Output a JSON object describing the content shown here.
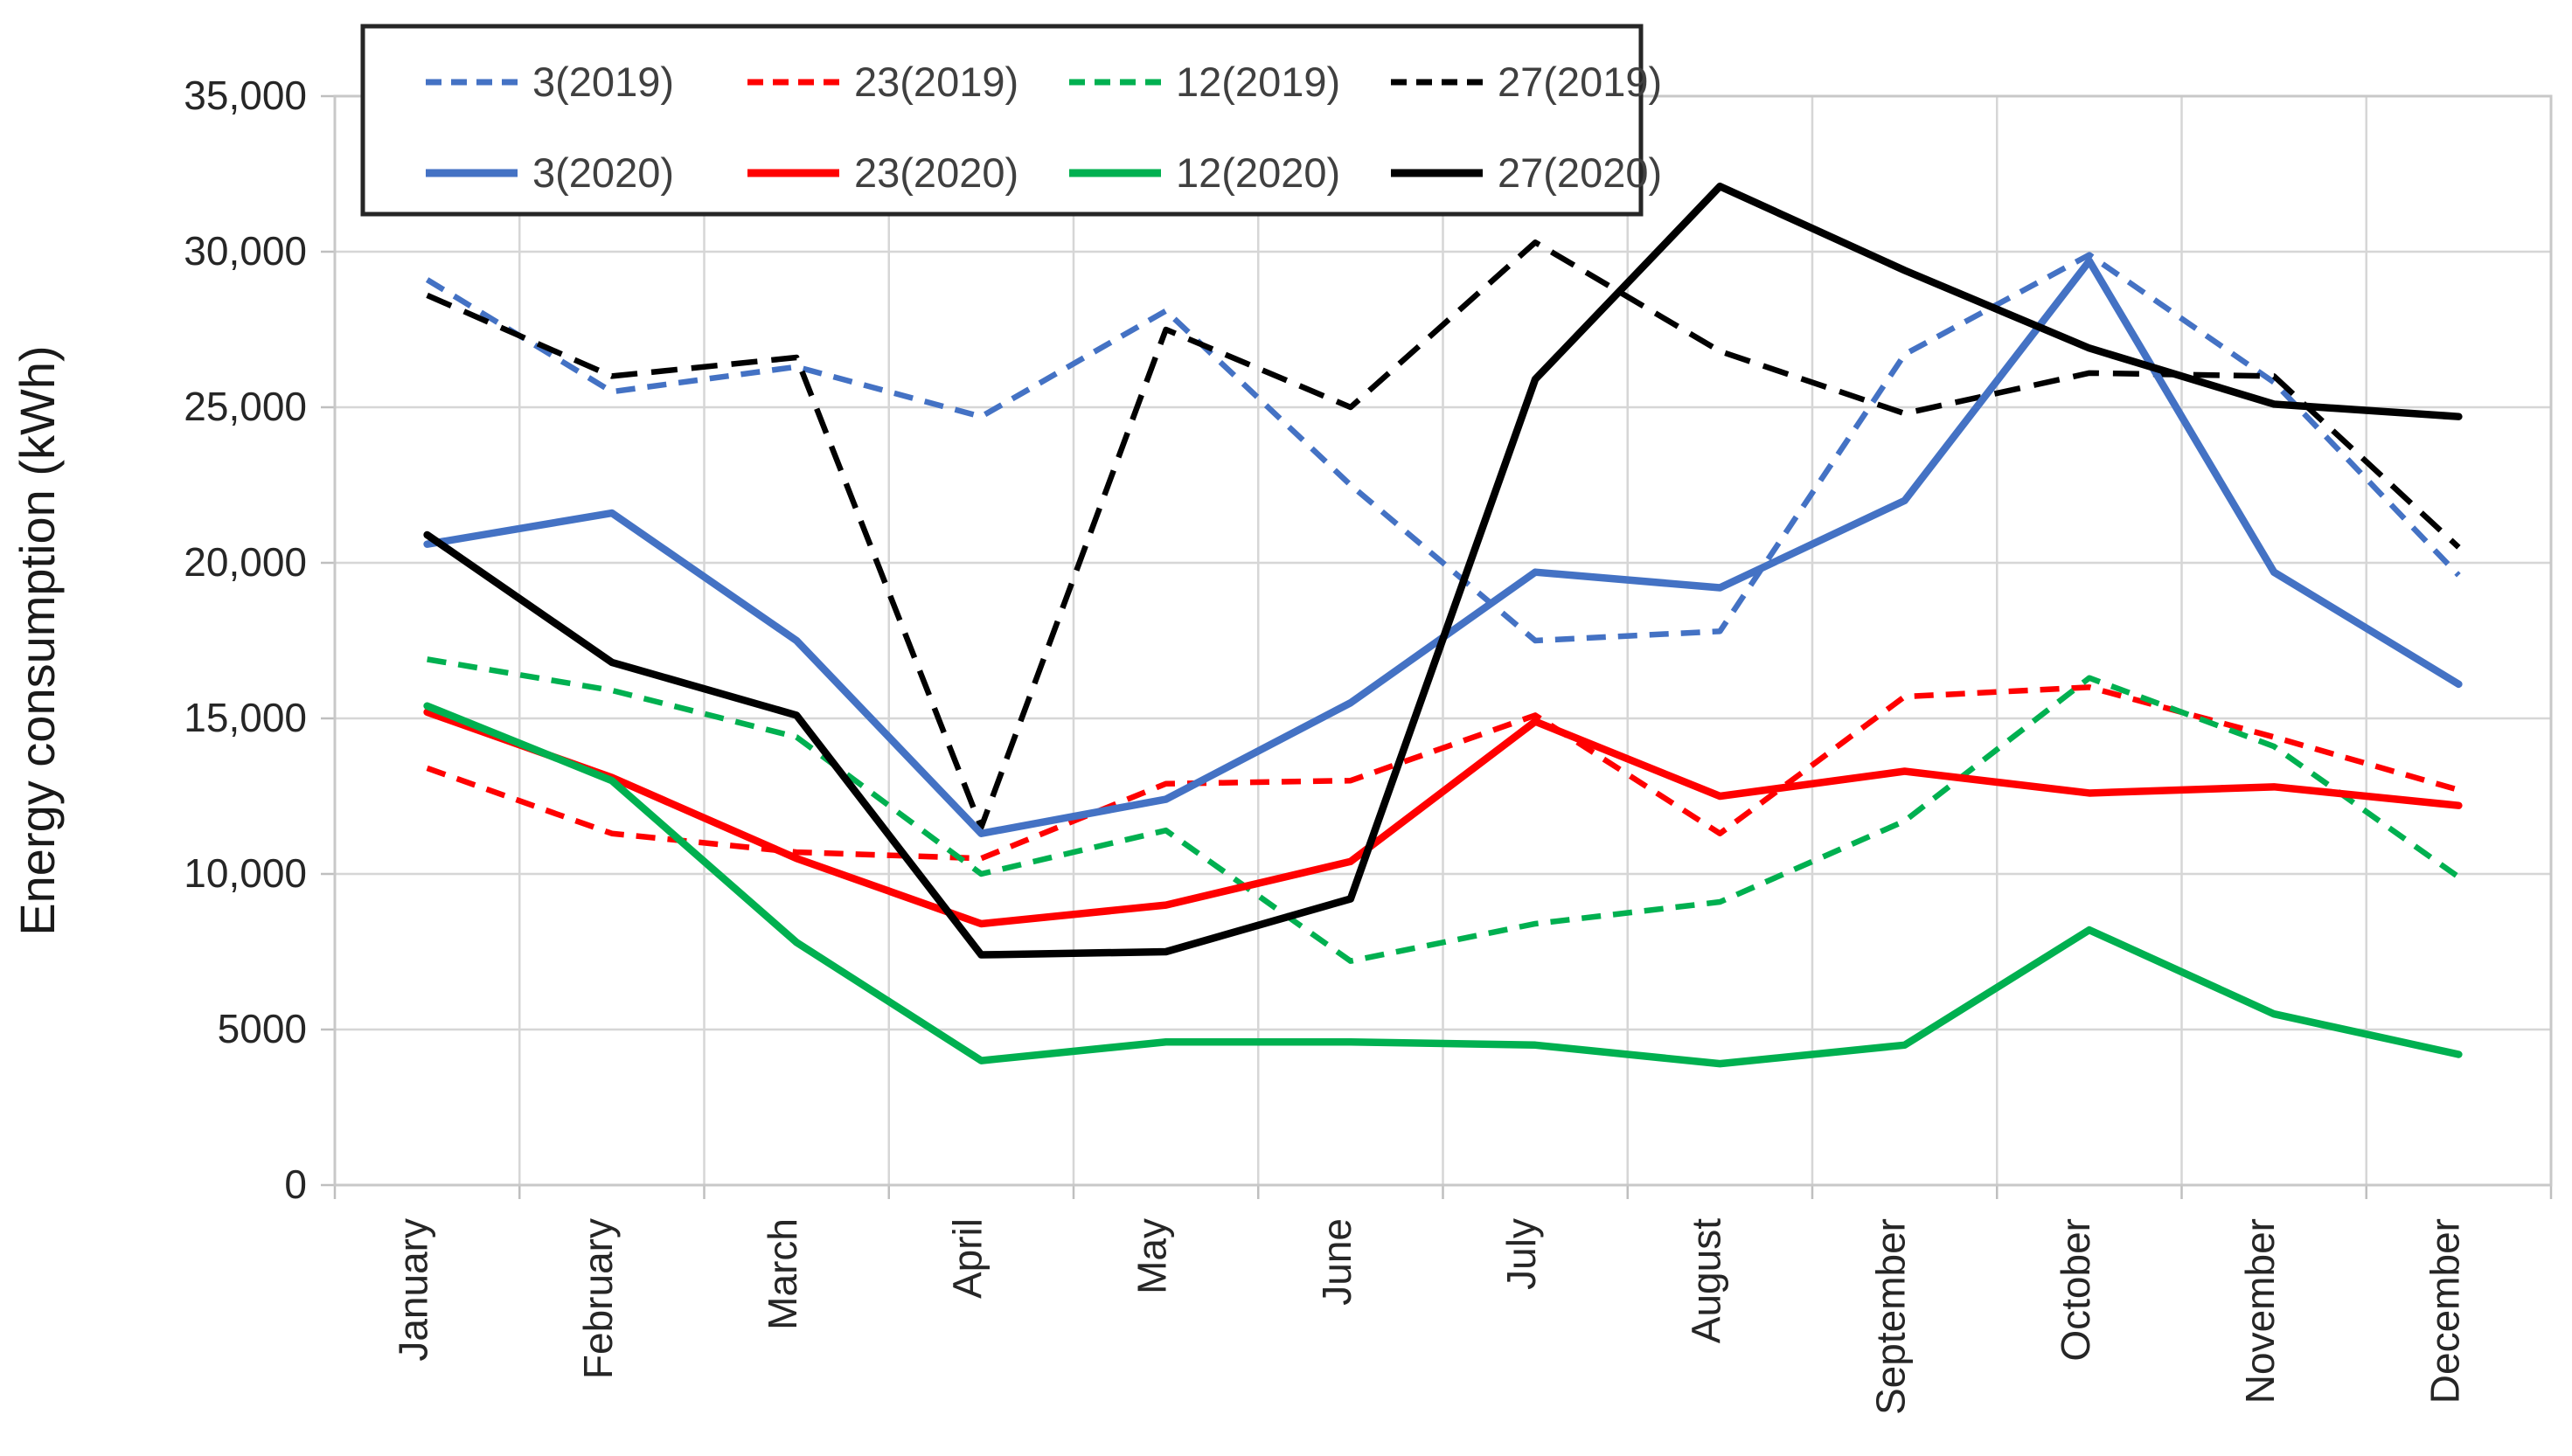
{
  "chart_data": {
    "type": "line",
    "title": "",
    "xlabel": "",
    "ylabel": "Energy consumption (kWh)",
    "ylim": [
      0,
      35000
    ],
    "ytick_interval": 5000,
    "ytick_labels": [
      "0",
      "5000",
      "10,000",
      "15,000",
      "20,000",
      "25,000",
      "30,000",
      "35,000"
    ],
    "grid": true,
    "legend_position": "top-left",
    "categories": [
      "January",
      "February",
      "March",
      "April",
      "May",
      "June",
      "July",
      "August",
      "September",
      "October",
      "November",
      "December"
    ],
    "series": [
      {
        "name": "3(2019)",
        "color": "#4472C4",
        "dash": true,
        "values": [
          29100,
          25500,
          26300,
          24700,
          28100,
          22500,
          17500,
          17800,
          26700,
          29900,
          25800,
          19600
        ]
      },
      {
        "name": "23(2019)",
        "color": "#FF0000",
        "dash": true,
        "values": [
          13400,
          11300,
          10700,
          10500,
          12900,
          13000,
          15100,
          11300,
          15700,
          16000,
          14400,
          12700
        ]
      },
      {
        "name": "12(2019)",
        "color": "#00B050",
        "dash": true,
        "values": [
          16900,
          15900,
          14400,
          10000,
          11400,
          7200,
          8400,
          9100,
          11700,
          16300,
          14100,
          9900
        ]
      },
      {
        "name": "27(2019)",
        "color": "#000000",
        "dash": true,
        "values": [
          28600,
          26000,
          26600,
          11500,
          27500,
          25000,
          30300,
          26800,
          24800,
          26100,
          26000,
          20500
        ]
      },
      {
        "name": "3(2020)",
        "color": "#4472C4",
        "dash": false,
        "values": [
          20600,
          21600,
          17500,
          11300,
          12400,
          15500,
          19700,
          19200,
          22000,
          29700,
          19700,
          16100
        ]
      },
      {
        "name": "23(2020)",
        "color": "#FF0000",
        "dash": false,
        "values": [
          15200,
          13100,
          10500,
          8400,
          9000,
          10400,
          14900,
          12500,
          13300,
          12600,
          12800,
          12200
        ]
      },
      {
        "name": "12(2020)",
        "color": "#00B050",
        "dash": false,
        "values": [
          15400,
          13000,
          7800,
          4000,
          4600,
          4600,
          4500,
          3900,
          4500,
          8200,
          5500,
          4200
        ]
      },
      {
        "name": "27(2020)",
        "color": "#000000",
        "dash": false,
        "values": [
          20900,
          16800,
          15100,
          7400,
          7500,
          9200,
          25900,
          32100,
          29400,
          26900,
          25100,
          24700
        ]
      }
    ],
    "colors": {
      "grid": "#D6D6D6",
      "plot_border": "#C8C8C8",
      "tick": "#BFBFBF",
      "axis_text": "#262626",
      "legend_text": "#404040",
      "legend_border": "#262626",
      "background": "#FFFFFF"
    }
  }
}
